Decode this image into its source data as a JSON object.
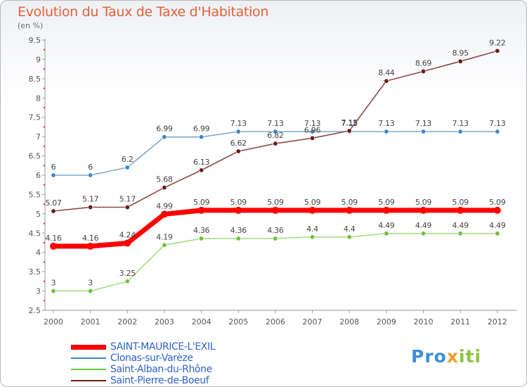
{
  "title": "Evolution du Taux de Taxe d'Habitation",
  "subtitle": "(en %)",
  "brand": {
    "part1": "Pro",
    "part2": "x",
    "part3": "iti"
  },
  "chart_data": {
    "type": "line",
    "title": "Evolution du Taux de Taxe d'Habitation",
    "ylabel": "(en %)",
    "xlabel": "",
    "x": [
      "2000",
      "2001",
      "2002",
      "2003",
      "2004",
      "2005",
      "2006",
      "2007",
      "2008",
      "2009",
      "2010",
      "2011",
      "2012"
    ],
    "ylim": [
      2.5,
      9.5
    ],
    "yticks": [
      "2.5",
      "3",
      "3.5",
      "4",
      "4.5",
      "5",
      "5.5",
      "6",
      "6.5",
      "7",
      "7.5",
      "8",
      "8.5",
      "9",
      "9.5"
    ],
    "grid": false,
    "legend_position": "bottom-left",
    "series": [
      {
        "name": "SAINT-MAURICE-L'EXIL",
        "values": [
          4.16,
          4.16,
          4.24,
          4.99,
          5.09,
          5.09,
          5.09,
          5.09,
          5.09,
          5.09,
          5.09,
          5.09,
          5.09
        ],
        "labels": [
          "4.16",
          "4.16",
          "4.24",
          "4.99",
          "5.09",
          "5.09",
          "5.09",
          "5.09",
          "5.09",
          "5.09",
          "5.09",
          "5.09",
          "5.09"
        ],
        "color": "#ff0000",
        "marker": "#ff0000",
        "width": 7,
        "highlight": true
      },
      {
        "name": "Clonas-sur-Varèze",
        "values": [
          6,
          6,
          6.2,
          6.99,
          6.99,
          7.13,
          7.13,
          7.13,
          7.13,
          7.13,
          7.13,
          7.13,
          7.13
        ],
        "labels": [
          "6",
          "6",
          "6.2",
          "6.99",
          "6.99",
          "7.13",
          "7.13",
          "7.13",
          "7.13",
          "7.13",
          "7.13",
          "7.13",
          "7.13"
        ],
        "color": "#7fa8cc",
        "marker": "#3a88cf",
        "width": 1.6
      },
      {
        "name": "Saint-Alban-du-Rhône",
        "values": [
          3,
          3,
          3.25,
          4.19,
          4.36,
          4.36,
          4.36,
          4.4,
          4.4,
          4.49,
          4.49,
          4.49,
          4.49
        ],
        "labels": [
          "3",
          "3",
          "3.25",
          "4.19",
          "4.36",
          "4.36",
          "4.36",
          "4.4",
          "4.4",
          "4.49",
          "4.49",
          "4.49",
          "4.49"
        ],
        "color": "#a6dc82",
        "marker": "#6bc33d",
        "width": 1.6
      },
      {
        "name": "Saint-Pierre-de-Boeuf",
        "values": [
          5.07,
          5.17,
          5.17,
          5.68,
          6.13,
          6.62,
          6.82,
          6.96,
          7.15,
          8.44,
          8.69,
          8.95,
          9.22
        ],
        "labels": [
          "5.07",
          "5.17",
          "5.17",
          "5.68",
          "6.13",
          "6.62",
          "6.82",
          "6.96",
          "7.15",
          "8.44",
          "8.69",
          "8.95",
          "9.22"
        ],
        "color": "#8a4a4a",
        "marker": "#6a1a1a",
        "width": 1.6
      }
    ]
  }
}
